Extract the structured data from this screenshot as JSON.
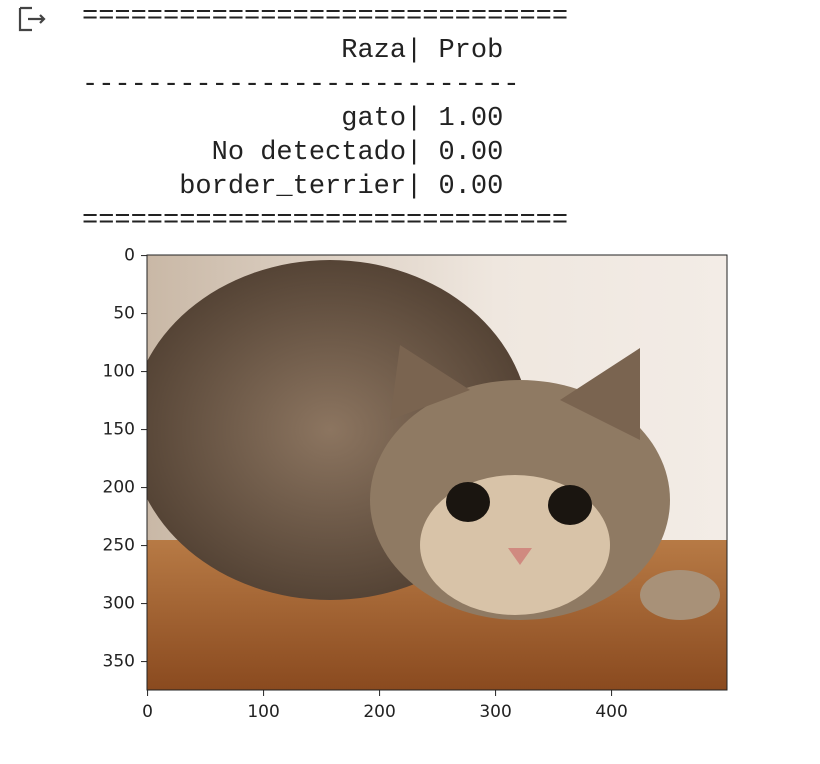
{
  "output": {
    "lines": [
      "==============================",
      "                Raza| Prob",
      "---------------------------",
      "                gato| 1.00",
      "        No detectado| 0.00",
      "      border_terrier| 0.00",
      "=============================="
    ]
  },
  "chart_data": {
    "type": "image",
    "xlim": [
      -0.5,
      499.5
    ],
    "ylim": [
      374.5,
      -0.5
    ],
    "xticks": [
      0,
      100,
      200,
      300,
      400
    ],
    "yticks": [
      0,
      50,
      100,
      150,
      200,
      250,
      300,
      350
    ]
  }
}
